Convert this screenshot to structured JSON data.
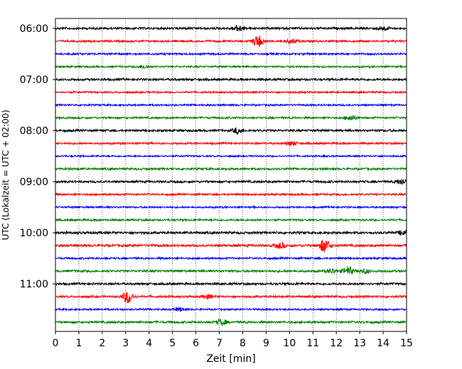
{
  "chart_data": {
    "type": "line",
    "title": "",
    "xlabel": "Zeit  [min]",
    "ylabel": "UTC (Lokalzeit = UTC + 02:00)",
    "xlim": [
      0,
      15
    ],
    "x_ticks": [
      0,
      1,
      2,
      3,
      4,
      5,
      6,
      7,
      8,
      9,
      10,
      11,
      12,
      13,
      14,
      15
    ],
    "y_tick_labels": [
      "06:00",
      "07:00",
      "08:00",
      "09:00",
      "10:00",
      "11:00"
    ],
    "trace_start_times": [
      "06:00",
      "06:15",
      "06:30",
      "06:45",
      "07:00",
      "07:15",
      "07:30",
      "07:45",
      "08:00",
      "08:15",
      "08:30",
      "08:45",
      "09:00",
      "09:15",
      "09:30",
      "09:45",
      "10:00",
      "10:15",
      "10:30",
      "10:45",
      "11:00",
      "11:15",
      "11:30",
      "11:45"
    ],
    "grid": "vertical-dotted",
    "colors": [
      "#000000",
      "#ff0000",
      "#0000ff",
      "#008000"
    ],
    "noise_amplitude": [
      1.5,
      1.3,
      1.3,
      1.2,
      1.5,
      1.2,
      1.2,
      1.3,
      1.5,
      1.3,
      1.1,
      1.4,
      1.5,
      1.3,
      1.2,
      1.3,
      1.6,
      1.6,
      1.3,
      1.5,
      1.5,
      1.4,
      1.2,
      1.5
    ],
    "events": [
      {
        "trace": 0,
        "minute": 7.8,
        "amplitude": 4
      },
      {
        "trace": 0,
        "minute": 14.0,
        "amplitude": 2.5
      },
      {
        "trace": 1,
        "minute": 8.65,
        "amplitude": 8
      },
      {
        "trace": 1,
        "minute": 10.1,
        "amplitude": 3
      },
      {
        "trace": 3,
        "minute": 3.8,
        "amplitude": 2.5
      },
      {
        "trace": 7,
        "minute": 12.6,
        "amplitude": 4
      },
      {
        "trace": 8,
        "minute": 7.8,
        "amplitude": 4
      },
      {
        "trace": 9,
        "minute": 10.1,
        "amplitude": 3
      },
      {
        "trace": 12,
        "minute": 14.8,
        "amplitude": 4
      },
      {
        "trace": 16,
        "minute": 14.9,
        "amplitude": 4
      },
      {
        "trace": 17,
        "minute": 9.6,
        "amplitude": 3.5
      },
      {
        "trace": 17,
        "minute": 11.5,
        "amplitude": 9
      },
      {
        "trace": 19,
        "minute": 11.8,
        "amplitude": 3
      },
      {
        "trace": 19,
        "minute": 12.5,
        "amplitude": 6
      },
      {
        "trace": 19,
        "minute": 13.2,
        "amplitude": 3
      },
      {
        "trace": 21,
        "minute": 3.1,
        "amplitude": 9
      },
      {
        "trace": 21,
        "minute": 6.5,
        "amplitude": 2.5
      },
      {
        "trace": 22,
        "minute": 5.3,
        "amplitude": 2.5
      },
      {
        "trace": 23,
        "minute": 7.1,
        "amplitude": 4
      }
    ]
  }
}
